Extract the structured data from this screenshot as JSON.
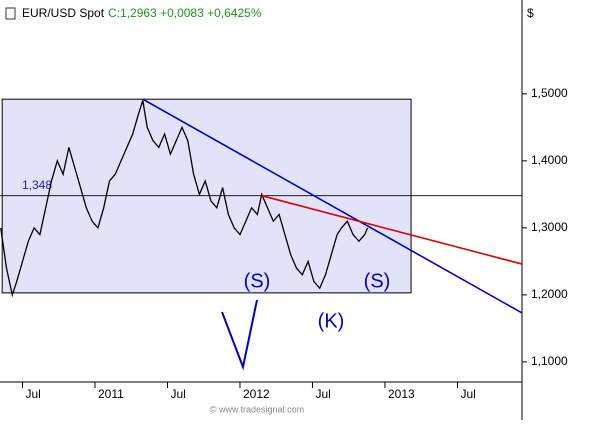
{
  "chart_data": {
    "type": "line",
    "title": "EUR/USD Spot",
    "quote": "C:1,2963 +0,0083 +0,6425%",
    "currency": "$",
    "watermark": "© www.tradesignal.com",
    "color": "#000000",
    "x": [
      2010.35,
      2010.39,
      2010.43,
      2010.46,
      2010.5,
      2010.54,
      2010.58,
      2010.62,
      2010.66,
      2010.7,
      2010.74,
      2010.78,
      2010.82,
      2010.86,
      2010.9,
      2010.94,
      2010.98,
      2011.02,
      2011.06,
      2011.1,
      2011.14,
      2011.18,
      2011.22,
      2011.26,
      2011.3,
      2011.33,
      2011.36,
      2011.4,
      2011.44,
      2011.48,
      2011.52,
      2011.56,
      2011.6,
      2011.64,
      2011.68,
      2011.72,
      2011.76,
      2011.8,
      2011.84,
      2011.88,
      2011.92,
      2011.96,
      2012.0,
      2012.04,
      2012.08,
      2012.12,
      2012.15,
      2012.19,
      2012.23,
      2012.27,
      2012.31,
      2012.35,
      2012.39,
      2012.43,
      2012.47,
      2012.51,
      2012.55,
      2012.59,
      2012.63,
      2012.67,
      2012.7,
      2012.74,
      2012.78,
      2012.82,
      2012.86,
      2012.88
    ],
    "values": [
      1.3,
      1.24,
      1.2,
      1.22,
      1.25,
      1.28,
      1.3,
      1.29,
      1.33,
      1.37,
      1.4,
      1.38,
      1.42,
      1.39,
      1.36,
      1.33,
      1.31,
      1.3,
      1.33,
      1.37,
      1.38,
      1.4,
      1.42,
      1.44,
      1.47,
      1.49,
      1.45,
      1.43,
      1.42,
      1.44,
      1.41,
      1.43,
      1.45,
      1.43,
      1.38,
      1.35,
      1.37,
      1.34,
      1.33,
      1.36,
      1.32,
      1.3,
      1.29,
      1.31,
      1.33,
      1.32,
      1.35,
      1.33,
      1.31,
      1.32,
      1.29,
      1.26,
      1.24,
      1.23,
      1.25,
      1.22,
      1.21,
      1.23,
      1.26,
      1.29,
      1.3,
      1.31,
      1.29,
      1.28,
      1.29,
      1.3
    ],
    "xlim": [
      2010.345,
      2013.945
    ],
    "ylim": [
      1.07,
      1.64
    ],
    "xticks": [
      {
        "value": 2010.5,
        "label": "Jul"
      },
      {
        "value": 2011,
        "label": "2011"
      },
      {
        "value": 2011.5,
        "label": "Jul"
      },
      {
        "value": 2012,
        "label": "2012"
      },
      {
        "value": 2012.5,
        "label": "Jul"
      },
      {
        "value": 2013,
        "label": "2013"
      },
      {
        "value": 2013.5,
        "label": "Jul"
      }
    ],
    "yticks": [
      {
        "value": 1.1,
        "label": "1,1000"
      },
      {
        "value": 1.2,
        "label": "1,2000"
      },
      {
        "value": 1.3,
        "label": "1,3000"
      },
      {
        "value": 1.4,
        "label": "1,4000"
      },
      {
        "value": 1.5,
        "label": "1,5000"
      }
    ],
    "box": {
      "x": [
        2010.36,
        2013.18
      ],
      "y": [
        1.203,
        1.492
      ],
      "color": "#e2e2f8"
    },
    "hline": {
      "value": 1.348,
      "label": "1,348"
    },
    "trendlines": [
      {
        "color": "#0000cc",
        "x": [
          2011.33,
          2013.945
        ],
        "y": [
          1.492,
          1.173
        ]
      },
      {
        "color": "#e00000",
        "x": [
          2012.15,
          2013.945
        ],
        "y": [
          1.348,
          1.246
        ]
      }
    ],
    "annotations": [
      "(S)",
      "(K)",
      "(S)"
    ]
  }
}
